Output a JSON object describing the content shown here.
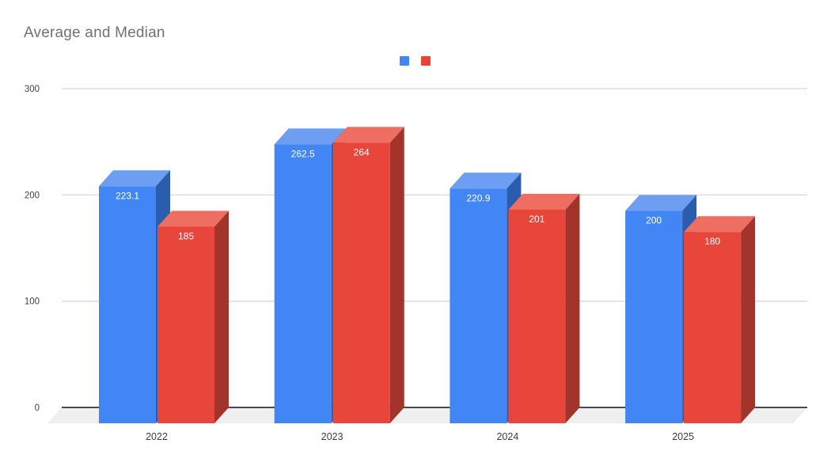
{
  "title": "Average and Median",
  "colors": {
    "background": "#ffffff",
    "title": "#717171",
    "grid": "#d8d8d8",
    "axis": "#333333",
    "floor": "#efefef",
    "tick_text": "#424242",
    "category_text": "#3c3c3c",
    "value_text": "#ffffff"
  },
  "legend": {
    "items": [
      {
        "label": "",
        "color": "#4285f4"
      },
      {
        "label": "",
        "color": "#ea4335"
      }
    ]
  },
  "chart_data": {
    "type": "bar",
    "style": "3d-column-grouped",
    "title": "Average and Median",
    "xlabel": "",
    "ylabel": "",
    "ylim": [
      0,
      300
    ],
    "yticks": [
      0,
      100,
      200,
      300
    ],
    "grid": "horizontal",
    "legend_position": "top-center",
    "categories": [
      "2022",
      "2023",
      "2024",
      "2025"
    ],
    "series": [
      {
        "id": "average",
        "legend_label": "",
        "colors": {
          "front": "#4285f4",
          "top": "#6d9ef1",
          "side": "#2b5dae"
        },
        "values": [
          223.1,
          262.5,
          220.9,
          200
        ],
        "labels": [
          "223.1",
          "262.5",
          "220.9",
          "200"
        ]
      },
      {
        "id": "median",
        "legend_label": "",
        "colors": {
          "front": "#e8463b",
          "top": "#ee6e61",
          "side": "#a3342b"
        },
        "values": [
          185,
          264,
          201,
          180
        ],
        "labels": [
          "185",
          "264",
          "201",
          "180"
        ]
      }
    ]
  }
}
